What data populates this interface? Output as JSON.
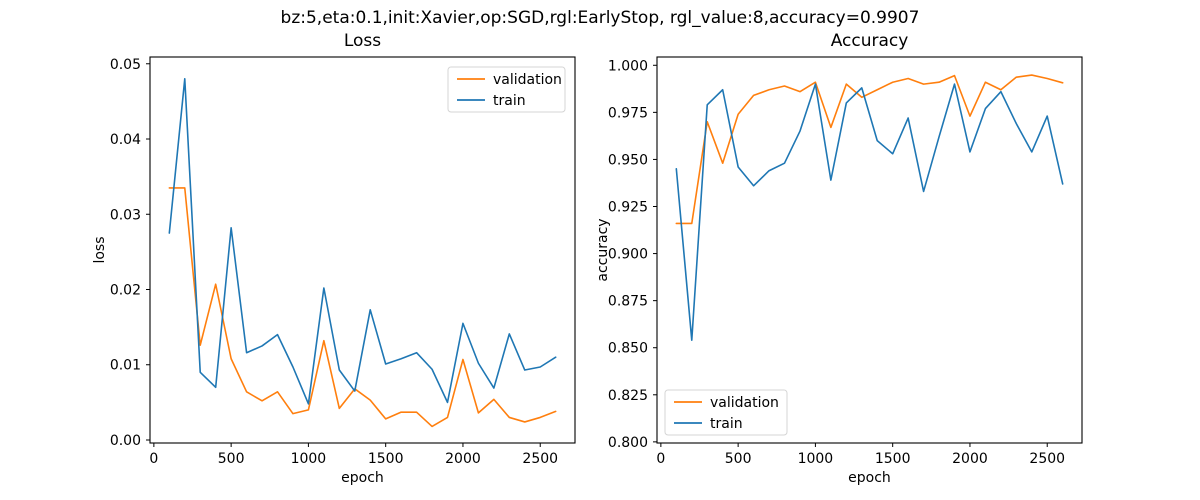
{
  "figure": {
    "suptitle": "bz:5,eta:0.1,init:Xavier,op:SGD,rgl:EarlyStop, rgl_value:8,accuracy=0.9907",
    "accent_colors": {
      "validation": "#ff7f0e",
      "train": "#1f77b4"
    }
  },
  "chart_data": [
    {
      "type": "line",
      "title": "Loss",
      "xlabel": "epoch",
      "ylabel": "loss",
      "grid": false,
      "legend_position": "top-right",
      "xlim": [
        -25,
        2725
      ],
      "ylim": [
        -0.0004,
        0.0509
      ],
      "xticks": [
        0,
        500,
        1000,
        1500,
        2000,
        2500
      ],
      "xtick_labels": [
        "0",
        "500",
        "1000",
        "1500",
        "2000",
        "2500"
      ],
      "yticks": [
        0.0,
        0.01,
        0.02,
        0.03,
        0.04,
        0.05
      ],
      "ytick_labels": [
        "0.00",
        "0.01",
        "0.02",
        "0.03",
        "0.04",
        "0.05"
      ],
      "x": [
        100,
        200,
        300,
        400,
        500,
        600,
        700,
        800,
        900,
        1000,
        1100,
        1200,
        1300,
        1400,
        1500,
        1600,
        1700,
        1800,
        1900,
        2000,
        2100,
        2200,
        2300,
        2400,
        2500,
        2600
      ],
      "series": [
        {
          "name": "validation",
          "color": "#ff7f0e",
          "values": [
            0.0335,
            0.0335,
            0.0126,
            0.0207,
            0.0108,
            0.0064,
            0.0052,
            0.0064,
            0.0035,
            0.004,
            0.0132,
            0.0042,
            0.0068,
            0.0053,
            0.0028,
            0.0037,
            0.0037,
            0.0018,
            0.003,
            0.0107,
            0.0036,
            0.0054,
            0.003,
            0.0024,
            0.003,
            0.0038
          ]
        },
        {
          "name": "train",
          "color": "#1f77b4",
          "values": [
            0.0275,
            0.048,
            0.009,
            0.007,
            0.0282,
            0.0116,
            0.0125,
            0.014,
            0.0097,
            0.0048,
            0.0202,
            0.0093,
            0.0065,
            0.0173,
            0.0101,
            0.0108,
            0.0116,
            0.0094,
            0.005,
            0.0155,
            0.0102,
            0.0069,
            0.0141,
            0.0093,
            0.0097,
            0.011
          ]
        }
      ]
    },
    {
      "type": "line",
      "title": "Accuracy",
      "xlabel": "epoch",
      "ylabel": "accuracy",
      "grid": false,
      "legend_position": "bottom-left",
      "xlim": [
        -25,
        2725
      ],
      "ylim": [
        0.7994,
        1.0044
      ],
      "xticks": [
        0,
        500,
        1000,
        1500,
        2000,
        2500
      ],
      "xtick_labels": [
        "0",
        "500",
        "1000",
        "1500",
        "2000",
        "2500"
      ],
      "yticks": [
        0.8,
        0.825,
        0.85,
        0.875,
        0.9,
        0.925,
        0.95,
        0.975,
        1.0
      ],
      "ytick_labels": [
        "0.800",
        "0.825",
        "0.850",
        "0.875",
        "0.900",
        "0.925",
        "0.950",
        "0.975",
        "1.000"
      ],
      "x": [
        100,
        200,
        300,
        400,
        500,
        600,
        700,
        800,
        900,
        1000,
        1100,
        1200,
        1300,
        1400,
        1500,
        1600,
        1700,
        1800,
        1900,
        2000,
        2100,
        2200,
        2300,
        2400,
        2500,
        2600
      ],
      "series": [
        {
          "name": "validation",
          "color": "#ff7f0e",
          "values": [
            0.916,
            0.916,
            0.97,
            0.948,
            0.974,
            0.984,
            0.987,
            0.989,
            0.986,
            0.991,
            0.967,
            0.99,
            0.983,
            0.987,
            0.991,
            0.993,
            0.99,
            0.991,
            0.9945,
            0.973,
            0.991,
            0.987,
            0.9937,
            0.9948,
            0.993,
            0.9907
          ]
        },
        {
          "name": "train",
          "color": "#1f77b4",
          "values": [
            0.945,
            0.854,
            0.979,
            0.987,
            0.946,
            0.936,
            0.944,
            0.948,
            0.965,
            0.99,
            0.939,
            0.98,
            0.988,
            0.96,
            0.953,
            0.972,
            0.933,
            0.962,
            0.99,
            0.954,
            0.977,
            0.986,
            0.969,
            0.954,
            0.973,
            0.937
          ]
        }
      ]
    }
  ],
  "legend": {
    "entries": [
      "validation",
      "train"
    ]
  }
}
